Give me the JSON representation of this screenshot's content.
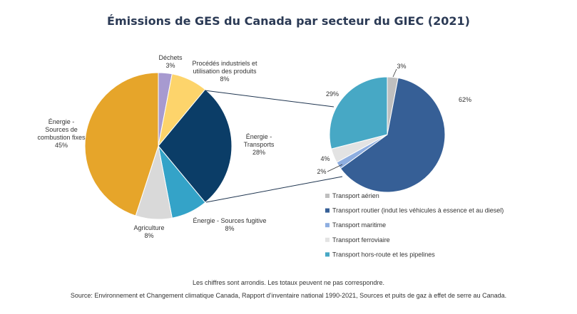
{
  "chart_data": [
    {
      "type": "pie",
      "title": "Émissions de GES du Canada par secteur du GIEC (2021)",
      "slices": [
        {
          "label": [
            "Déchets",
            "3%"
          ],
          "value": 3,
          "color": "#a79ad0"
        },
        {
          "label": [
            "Procédés industriels et",
            "utilisation des produits",
            "8%"
          ],
          "value": 8,
          "color": "#fdd46b"
        },
        {
          "label": [
            "Énergie -",
            "Transports",
            "28%"
          ],
          "value": 28,
          "color": "#0b3d67"
        },
        {
          "label": [
            "Énergie - Sources fugitive",
            "8%"
          ],
          "value": 8,
          "color": "#34a3c8"
        },
        {
          "label": [
            "Agriculture",
            "8%"
          ],
          "value": 8,
          "color": "#d9d9d9"
        },
        {
          "label": [
            "Énergie -",
            "Sources de",
            "combustion fixes",
            "45%"
          ],
          "value": 45,
          "color": "#e6a52a"
        }
      ]
    },
    {
      "type": "pie",
      "slices": [
        {
          "label": "3%",
          "legend": "Transport aérien",
          "value": 3,
          "color": "#bfbfbf"
        },
        {
          "label": "62%",
          "legend": "Transport routier (indut les véhicules à essence et au diesel)",
          "value": 62,
          "color": "#365f96"
        },
        {
          "label": "2%",
          "legend": "Transport maritime",
          "value": 2,
          "color": "#8eaee0"
        },
        {
          "label": "4%",
          "legend": "Transport ferroviaire",
          "value": 4,
          "color": "#e3e3e3"
        },
        {
          "label": "29%",
          "legend": "Transport hors-route et les pipelines",
          "value": 29,
          "color": "#47a8c5"
        }
      ]
    }
  ],
  "notes": {
    "rounding": "Les chiffres sont arrondis. Les totaux peuvent ne pas correspondre.",
    "source": "Source: Environnement et Changement climatique Canada, Rapport d’inventaire national 1990-2021, Sources et puits de gaz à effet de serre au Canada."
  }
}
